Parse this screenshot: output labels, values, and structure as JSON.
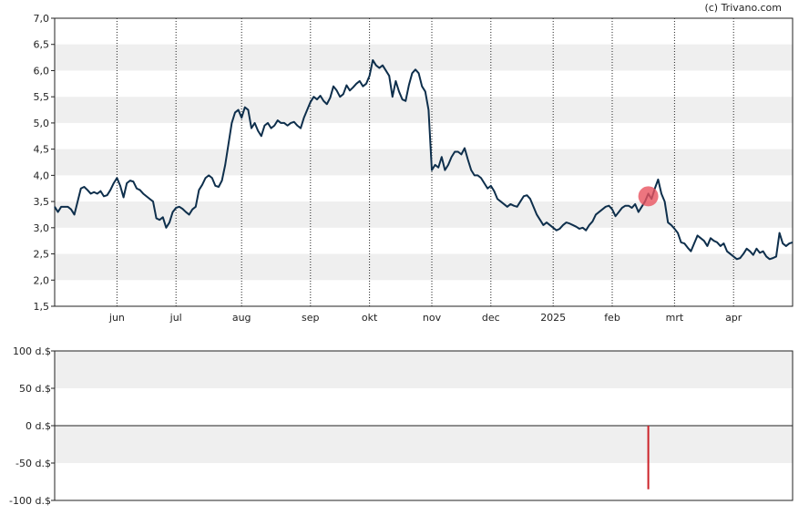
{
  "credit": "(c) Trivano.com",
  "chart_data": [
    {
      "type": "line",
      "ylim": [
        1.5,
        7.0
      ],
      "yticks": [
        "7,0",
        "6,5",
        "6,0",
        "5,5",
        "5,0",
        "4,5",
        "4,0",
        "3,5",
        "3,0",
        "2,5",
        "2,0",
        "1,5"
      ],
      "ytick_values": [
        7.0,
        6.5,
        6.0,
        5.5,
        5.0,
        4.5,
        4.0,
        3.5,
        3.0,
        2.5,
        2.0,
        1.5
      ],
      "month_labels": [
        "jun",
        "jul",
        "aug",
        "sep",
        "okt",
        "nov",
        "dec",
        "2025",
        "feb",
        "mrt",
        "apr"
      ],
      "month_index": [
        19,
        37,
        57,
        78,
        96,
        115,
        133,
        152,
        170,
        189,
        207
      ],
      "grid": true,
      "series_color": "#0e2f4c",
      "marker": {
        "index": 181,
        "value": 3.6,
        "color": "#e8535f"
      },
      "values": [
        3.4,
        3.3,
        3.4,
        3.4,
        3.4,
        3.35,
        3.25,
        3.5,
        3.75,
        3.78,
        3.72,
        3.65,
        3.68,
        3.65,
        3.7,
        3.6,
        3.62,
        3.72,
        3.85,
        3.95,
        3.8,
        3.58,
        3.85,
        3.9,
        3.88,
        3.75,
        3.72,
        3.65,
        3.6,
        3.55,
        3.5,
        3.18,
        3.15,
        3.2,
        3.0,
        3.1,
        3.3,
        3.38,
        3.4,
        3.36,
        3.3,
        3.25,
        3.35,
        3.4,
        3.72,
        3.82,
        3.95,
        4.0,
        3.95,
        3.8,
        3.78,
        3.9,
        4.2,
        4.6,
        5.0,
        5.2,
        5.25,
        5.1,
        5.3,
        5.25,
        4.9,
        5.0,
        4.85,
        4.75,
        4.95,
        5.0,
        4.9,
        4.95,
        5.05,
        5.0,
        5.0,
        4.95,
        5.0,
        5.02,
        4.95,
        4.9,
        5.1,
        5.25,
        5.4,
        5.5,
        5.45,
        5.52,
        5.42,
        5.36,
        5.48,
        5.7,
        5.62,
        5.5,
        5.55,
        5.72,
        5.62,
        5.68,
        5.75,
        5.8,
        5.7,
        5.75,
        5.9,
        6.2,
        6.1,
        6.05,
        6.1,
        6.0,
        5.9,
        5.5,
        5.8,
        5.6,
        5.45,
        5.42,
        5.72,
        5.95,
        6.02,
        5.95,
        5.7,
        5.6,
        5.25,
        4.1,
        4.2,
        4.15,
        4.35,
        4.1,
        4.2,
        4.35,
        4.45,
        4.45,
        4.4,
        4.52,
        4.3,
        4.1,
        4.0,
        4.0,
        3.95,
        3.85,
        3.75,
        3.8,
        3.7,
        3.55,
        3.5,
        3.45,
        3.4,
        3.45,
        3.42,
        3.4,
        3.5,
        3.6,
        3.62,
        3.55,
        3.4,
        3.25,
        3.15,
        3.05,
        3.1,
        3.05,
        3.0,
        2.95,
        2.98,
        3.05,
        3.1,
        3.08,
        3.05,
        3.02,
        2.98,
        3.0,
        2.95,
        3.05,
        3.12,
        3.25,
        3.3,
        3.35,
        3.4,
        3.42,
        3.35,
        3.22,
        3.3,
        3.38,
        3.42,
        3.42,
        3.38,
        3.45,
        3.3,
        3.4,
        3.5,
        3.65,
        3.55,
        3.75,
        3.92,
        3.65,
        3.5,
        3.1,
        3.05,
        2.98,
        2.9,
        2.72,
        2.7,
        2.62,
        2.55,
        2.7,
        2.85,
        2.8,
        2.75,
        2.65,
        2.8,
        2.75,
        2.72,
        2.65,
        2.7,
        2.55,
        2.5,
        2.45,
        2.4,
        2.42,
        2.5,
        2.6,
        2.55,
        2.48,
        2.6,
        2.52,
        2.55,
        2.45,
        2.4,
        2.42,
        2.45,
        2.9,
        2.7,
        2.65,
        2.7,
        2.72
      ]
    },
    {
      "type": "bar",
      "ylim": [
        -100,
        100
      ],
      "yticks": [
        "100 d.$",
        "50 d.$",
        "0 d.$",
        "-50 d.$",
        "-100 d.$"
      ],
      "ytick_values": [
        100,
        50,
        0,
        -50,
        -100
      ],
      "grid": true,
      "bar": {
        "index": 181,
        "value": -85,
        "color": "#cc2229"
      }
    }
  ]
}
